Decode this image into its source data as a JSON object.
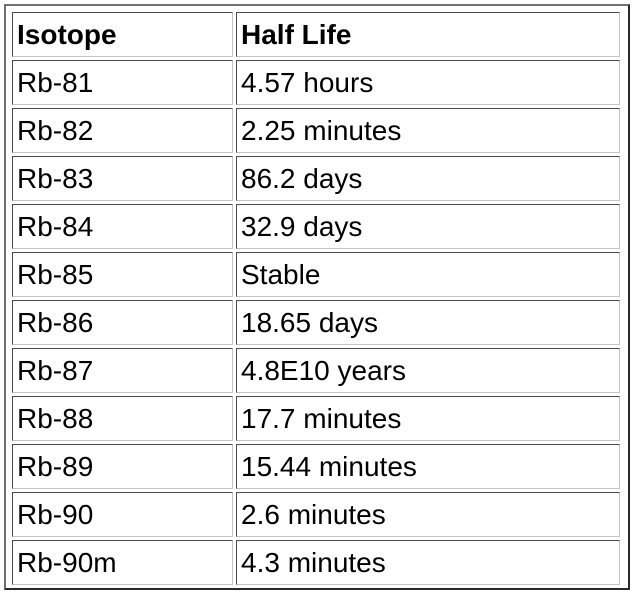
{
  "table": {
    "headers": [
      "Isotope",
      "Half Life"
    ],
    "rows": [
      [
        "Rb-81",
        "4.57 hours"
      ],
      [
        "Rb-82",
        "2.25 minutes"
      ],
      [
        "Rb-83",
        "86.2 days"
      ],
      [
        "Rb-84",
        "32.9 days"
      ],
      [
        "Rb-85",
        "Stable"
      ],
      [
        "Rb-86",
        "18.65 days"
      ],
      [
        "Rb-87",
        "4.8E10 years"
      ],
      [
        "Rb-88",
        "17.7 minutes"
      ],
      [
        "Rb-89",
        "15.44 minutes"
      ],
      [
        "Rb-90",
        "2.6 minutes"
      ],
      [
        "Rb-90m",
        "4.3 minutes"
      ]
    ]
  }
}
